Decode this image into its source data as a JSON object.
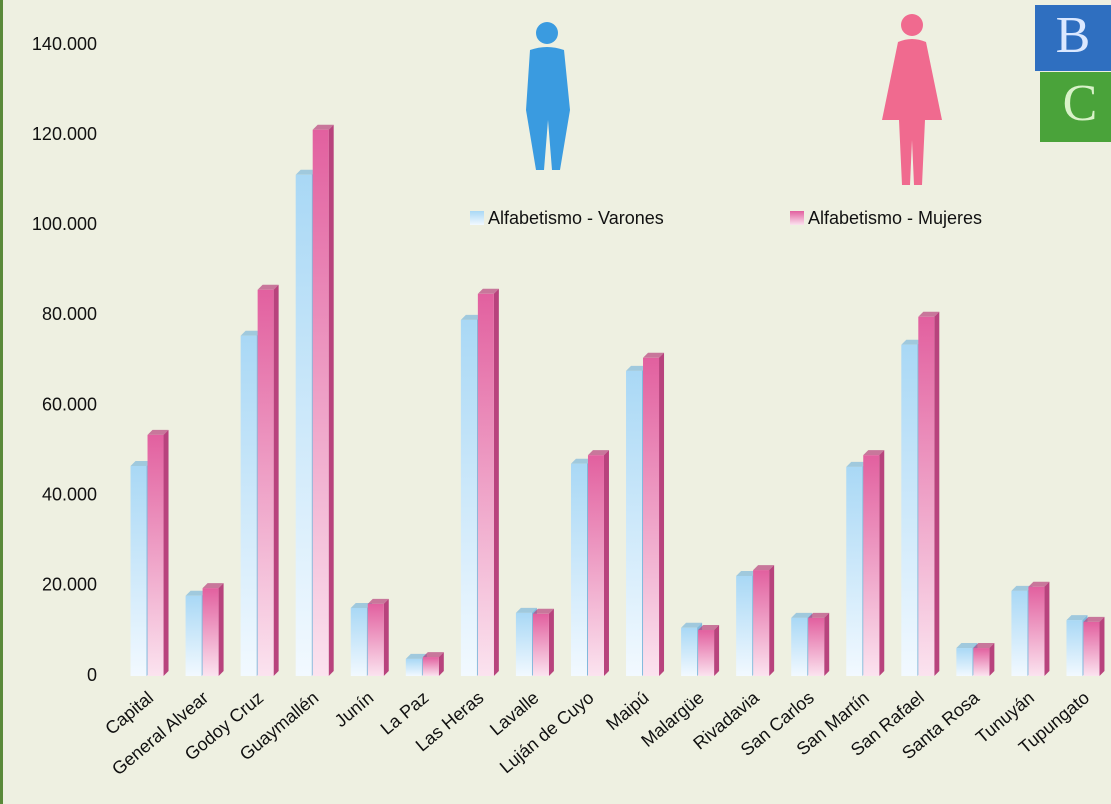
{
  "chart_data": {
    "type": "bar",
    "categories": [
      "Capital",
      "General Alvear",
      "Godoy Cruz",
      "Guaymallén",
      "Junín",
      "La Paz",
      "Las Heras",
      "Lavalle",
      "Luján de Cuyo",
      "Maipú",
      "Malargüe",
      "Rivadavia",
      "San Carlos",
      "San Martín",
      "San Rafael",
      "Santa Rosa",
      "Tunuyán",
      "Tupungato"
    ],
    "series": [
      {
        "name": "Alfabetismo - Varones",
        "color": "#a9d8f5",
        "values": [
          46600,
          17800,
          75500,
          111200,
          15100,
          3800,
          79000,
          14000,
          47100,
          67700,
          10700,
          22200,
          12900,
          46400,
          73500,
          6200,
          18900,
          12400
        ]
      },
      {
        "name": "Alfabetismo - Mujeres",
        "color": "#e2609f",
        "values": [
          53500,
          19500,
          85700,
          121200,
          16000,
          4200,
          84800,
          13800,
          49000,
          70600,
          10200,
          23500,
          12900,
          49000,
          79700,
          6200,
          19800,
          12000
        ]
      }
    ],
    "ylim": [
      0,
      140000
    ],
    "yticks": [
      0,
      {
        "value": 20000,
        "label": "20.000"
      },
      {
        "value": 40000,
        "label": "40.000"
      },
      {
        "value": 60000,
        "label": "60.000"
      },
      {
        "value": 80000,
        "label": "80.000"
      },
      {
        "value": 100000,
        "label": "100.000"
      },
      {
        "value": 120000,
        "label": "120.000"
      },
      {
        "value": 140000,
        "label": "140.000"
      }
    ],
    "grid": false
  }
}
